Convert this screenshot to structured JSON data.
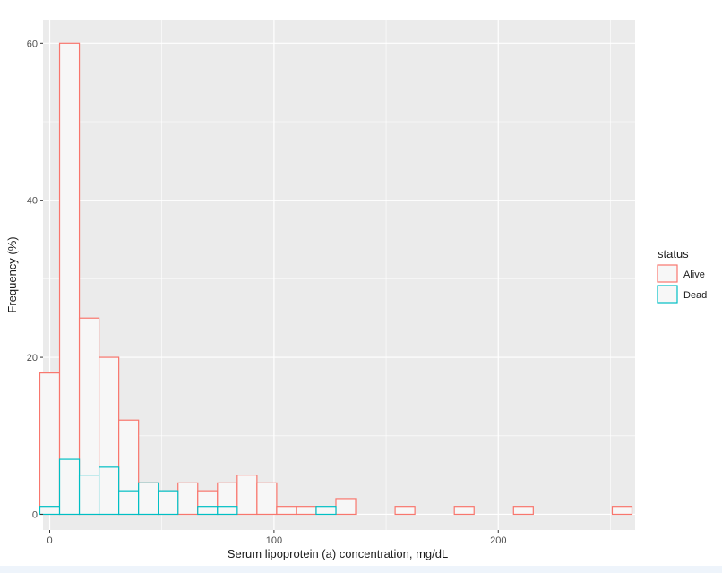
{
  "chart_data": {
    "type": "bar",
    "subtype": "overlaid histogram",
    "xlabel": "Serum lipoprotein (a) concentration, mg/dL",
    "ylabel": "Frequency (%)",
    "xlim": [
      -3,
      261
    ],
    "ylim": [
      -2,
      63
    ],
    "x_ticks": [
      0,
      100,
      200
    ],
    "y_ticks": [
      0,
      20,
      40,
      60
    ],
    "x_tick_labels": [
      "0",
      "100",
      "200"
    ],
    "y_tick_labels": [
      "0",
      "20",
      "40",
      "60"
    ],
    "grid": true,
    "panel_background": "#ebebeb",
    "bar_fill": "#f7f7f7",
    "legend": {
      "title": "status",
      "position": "right",
      "entries": [
        "Alive",
        "Dead"
      ]
    },
    "bin_width": 8.8,
    "bin_start": -4.4,
    "series": [
      {
        "name": "Alive",
        "color": "#f8766d",
        "values": [
          18,
          60,
          25,
          20,
          12,
          4,
          3,
          4,
          3,
          4,
          5,
          4,
          1,
          1,
          0,
          2,
          0,
          0,
          1,
          0,
          0,
          1,
          0,
          0,
          1,
          0,
          0,
          0,
          0,
          1
        ]
      },
      {
        "name": "Dead",
        "color": "#00bfc4",
        "values": [
          1,
          7,
          5,
          6,
          3,
          4,
          3,
          0,
          1,
          1,
          0,
          0,
          0,
          0,
          1,
          0,
          0,
          0,
          0,
          0,
          0,
          0,
          0,
          0,
          0,
          0,
          0,
          0,
          0,
          0
        ]
      }
    ]
  }
}
